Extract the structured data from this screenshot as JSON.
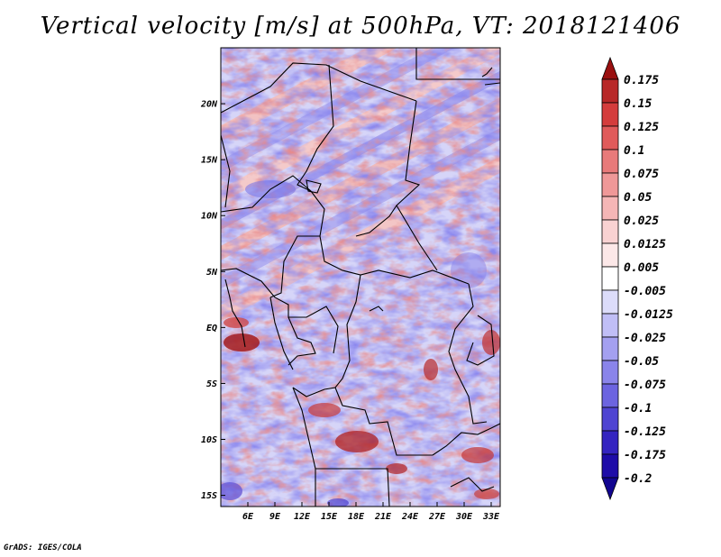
{
  "title": "Vertical velocity [m/s] at 500hPa, VT: 2018121406",
  "credit": "GrADS: IGES/COLA",
  "map": {
    "lon_range": [
      3,
      34
    ],
    "lat_range": [
      -16,
      25
    ],
    "lon_ticks": [
      "6E",
      "9E",
      "12E",
      "15E",
      "18E",
      "21E",
      "24E",
      "27E",
      "30E",
      "33E"
    ],
    "lat_ticks": [
      "20N",
      "15N",
      "10N",
      "5N",
      "EQ",
      "5S",
      "10S",
      "15S"
    ],
    "field_palette": {
      "strong_down": "#1a0a9a",
      "down": "#8a86f0",
      "weak_down": "#c9c8f6",
      "neutral": "#ffffff",
      "weak_up": "#f4c4c4",
      "up": "#e27a7a",
      "strong_up": "#9a1414"
    }
  },
  "colorbar": {
    "labels": [
      "0.175",
      "0.15",
      "0.125",
      "0.1",
      "0.075",
      "0.05",
      "0.025",
      "0.0125",
      "0.005",
      "-0.005",
      "-0.0125",
      "-0.025",
      "-0.05",
      "-0.075",
      "-0.1",
      "-0.125",
      "-0.175",
      "-0.2"
    ],
    "colors": [
      "#a01414",
      "#b82828",
      "#d43c3c",
      "#e05a5a",
      "#e87a7a",
      "#ef9898",
      "#f5b6b6",
      "#f9d2d2",
      "#fce8e8",
      "#ffffff",
      "#dcdcfa",
      "#c0bef6",
      "#a4a0f0",
      "#8a84ea",
      "#6c64e0",
      "#4f44d2",
      "#3424c0",
      "#1e0ca8",
      "#13069a"
    ],
    "top_color": "#9a1010",
    "bottom_color": "#120590"
  }
}
